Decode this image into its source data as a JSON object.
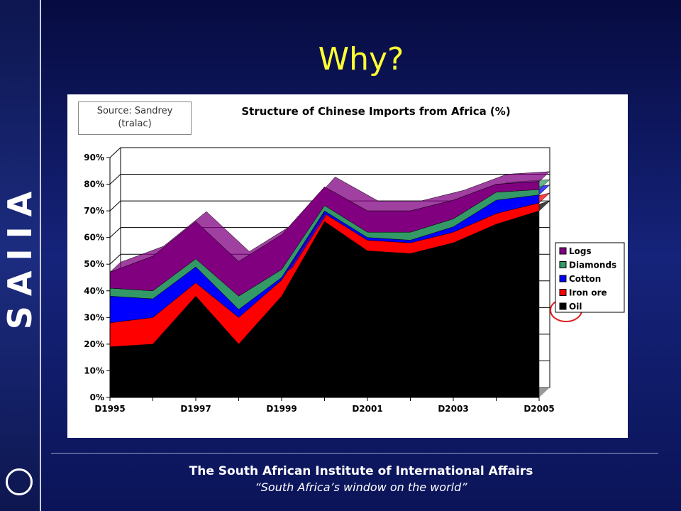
{
  "slide": {
    "title": "Why?",
    "sidebar": "SAIIA"
  },
  "footer": {
    "org": "The South African Institute of International Affairs",
    "tagline": "“South Africa’s window on the world”"
  },
  "chart_data": {
    "type": "stacked_area",
    "title": "Structure of Chinese Imports from Africa (%)",
    "source": "Source: Sandrey (tralac)",
    "categories": [
      "D1995",
      null,
      "D1997",
      null,
      "D1999",
      null,
      "D2001",
      null,
      "D2003",
      null,
      "D2005"
    ],
    "series": [
      {
        "name": "Oil",
        "color": "#000000",
        "values": [
          19,
          20,
          38,
          20,
          38,
          66,
          55,
          54,
          58,
          65,
          70
        ]
      },
      {
        "name": "Iron ore",
        "color": "#ff0000",
        "values": [
          9,
          10,
          5,
          10,
          6,
          3,
          4,
          4,
          4,
          4,
          3
        ]
      },
      {
        "name": "Cotton",
        "color": "#0000ff",
        "values": [
          10,
          7,
          6,
          3,
          1,
          1,
          1,
          1,
          2,
          5,
          3
        ]
      },
      {
        "name": "Diamonds",
        "color": "#339966",
        "values": [
          3,
          3,
          3,
          5,
          3,
          2,
          2,
          3,
          3,
          3,
          2
        ]
      },
      {
        "name": "Logs",
        "color": "#800080",
        "values": [
          6,
          13,
          14,
          13,
          13,
          7,
          8,
          8,
          7,
          3,
          3
        ]
      }
    ],
    "ylim": [
      0,
      90
    ],
    "yticks": [
      {
        "value": 0,
        "label": "0%"
      },
      {
        "value": 10,
        "label": "10%"
      },
      {
        "value": 20,
        "label": "20%"
      },
      {
        "value": 30,
        "label": "30%"
      },
      {
        "value": 40,
        "label": "40%"
      },
      {
        "value": 50,
        "label": "50%"
      },
      {
        "value": 60,
        "label": "60%"
      },
      {
        "value": 70,
        "label": "70%"
      },
      {
        "value": 80,
        "label": "80%"
      },
      {
        "value": 90,
        "label": "90%"
      }
    ],
    "grid": true,
    "legend": "right"
  }
}
